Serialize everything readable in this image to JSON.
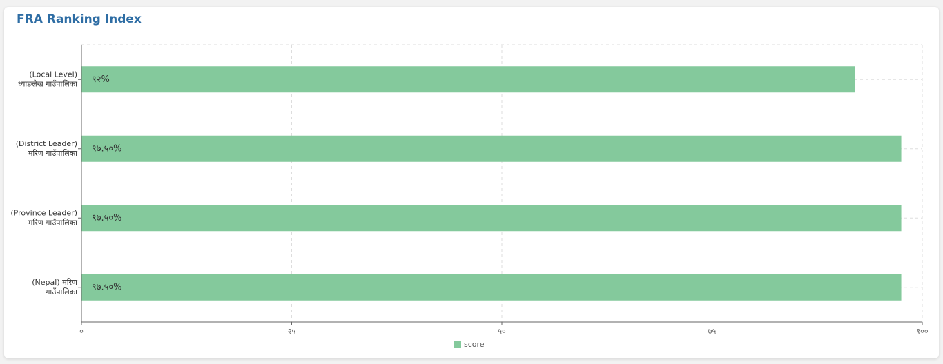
{
  "chart_data": {
    "type": "bar",
    "orientation": "horizontal",
    "title": "FRA Ranking Index",
    "categories": [
      "(Local Level) ध्याङलेख गाउँपालिका",
      "(District Leader) मरिण गाउँपालिका",
      "(Province Leader) मरिण गाउँपालिका",
      "(Nepal) मरिण गाउँपालिका"
    ],
    "series": [
      {
        "name": "score",
        "color": "#84c99c",
        "values": [
          92,
          97.5,
          97.5,
          97.5
        ],
        "value_labels": [
          "९२%",
          "९७.५०%",
          "९७.५०%",
          "९७.५०%"
        ]
      }
    ],
    "xlim": [
      0,
      100
    ],
    "xticks": [
      {
        "value": 0,
        "label": "०"
      },
      {
        "value": 25,
        "label": "२५"
      },
      {
        "value": 50,
        "label": "५०"
      },
      {
        "value": 75,
        "label": "७५"
      },
      {
        "value": 100,
        "label": "१००"
      }
    ],
    "grid": true,
    "legend": "bottom"
  }
}
